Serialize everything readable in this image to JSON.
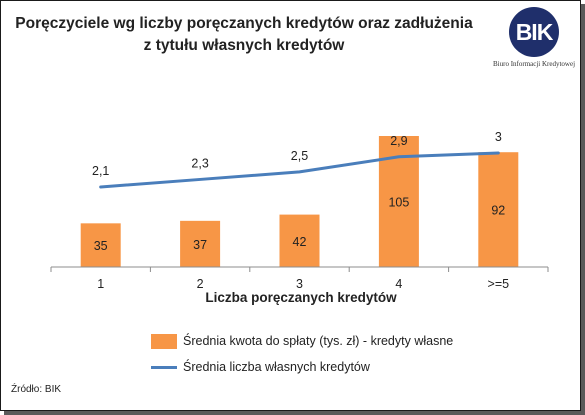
{
  "title_line1": "Poręczyciele wg liczby poręczanych kredytów oraz zadłużenia",
  "title_line2": "z tytułu własnych kredytów",
  "logo": {
    "text": "BIK",
    "subtitle": "Biuro Informacji Kredytowej",
    "color": "#1f2f6b"
  },
  "source": "Źródło: BIK",
  "chart_data": {
    "type": "bar",
    "categories": [
      "1",
      "2",
      "3",
      "4",
      ">=5"
    ],
    "xlabel": "Liczba poręczanych kredytów",
    "series": [
      {
        "name": "Średnia kwota do spłaty  (tys. zł) - kredyty własne",
        "kind": "bar",
        "color": "#f79646",
        "values": [
          35,
          37,
          42,
          105,
          92
        ]
      },
      {
        "name": "Średnia liczba własnych kredytów",
        "kind": "line",
        "color": "#4a7ebb",
        "values": [
          2.1,
          2.3,
          2.5,
          2.9,
          3.0
        ],
        "labels": [
          "2,1",
          "2,3",
          "2,5",
          "2,9",
          "3"
        ]
      }
    ],
    "legend": "bottom",
    "grid": false
  }
}
